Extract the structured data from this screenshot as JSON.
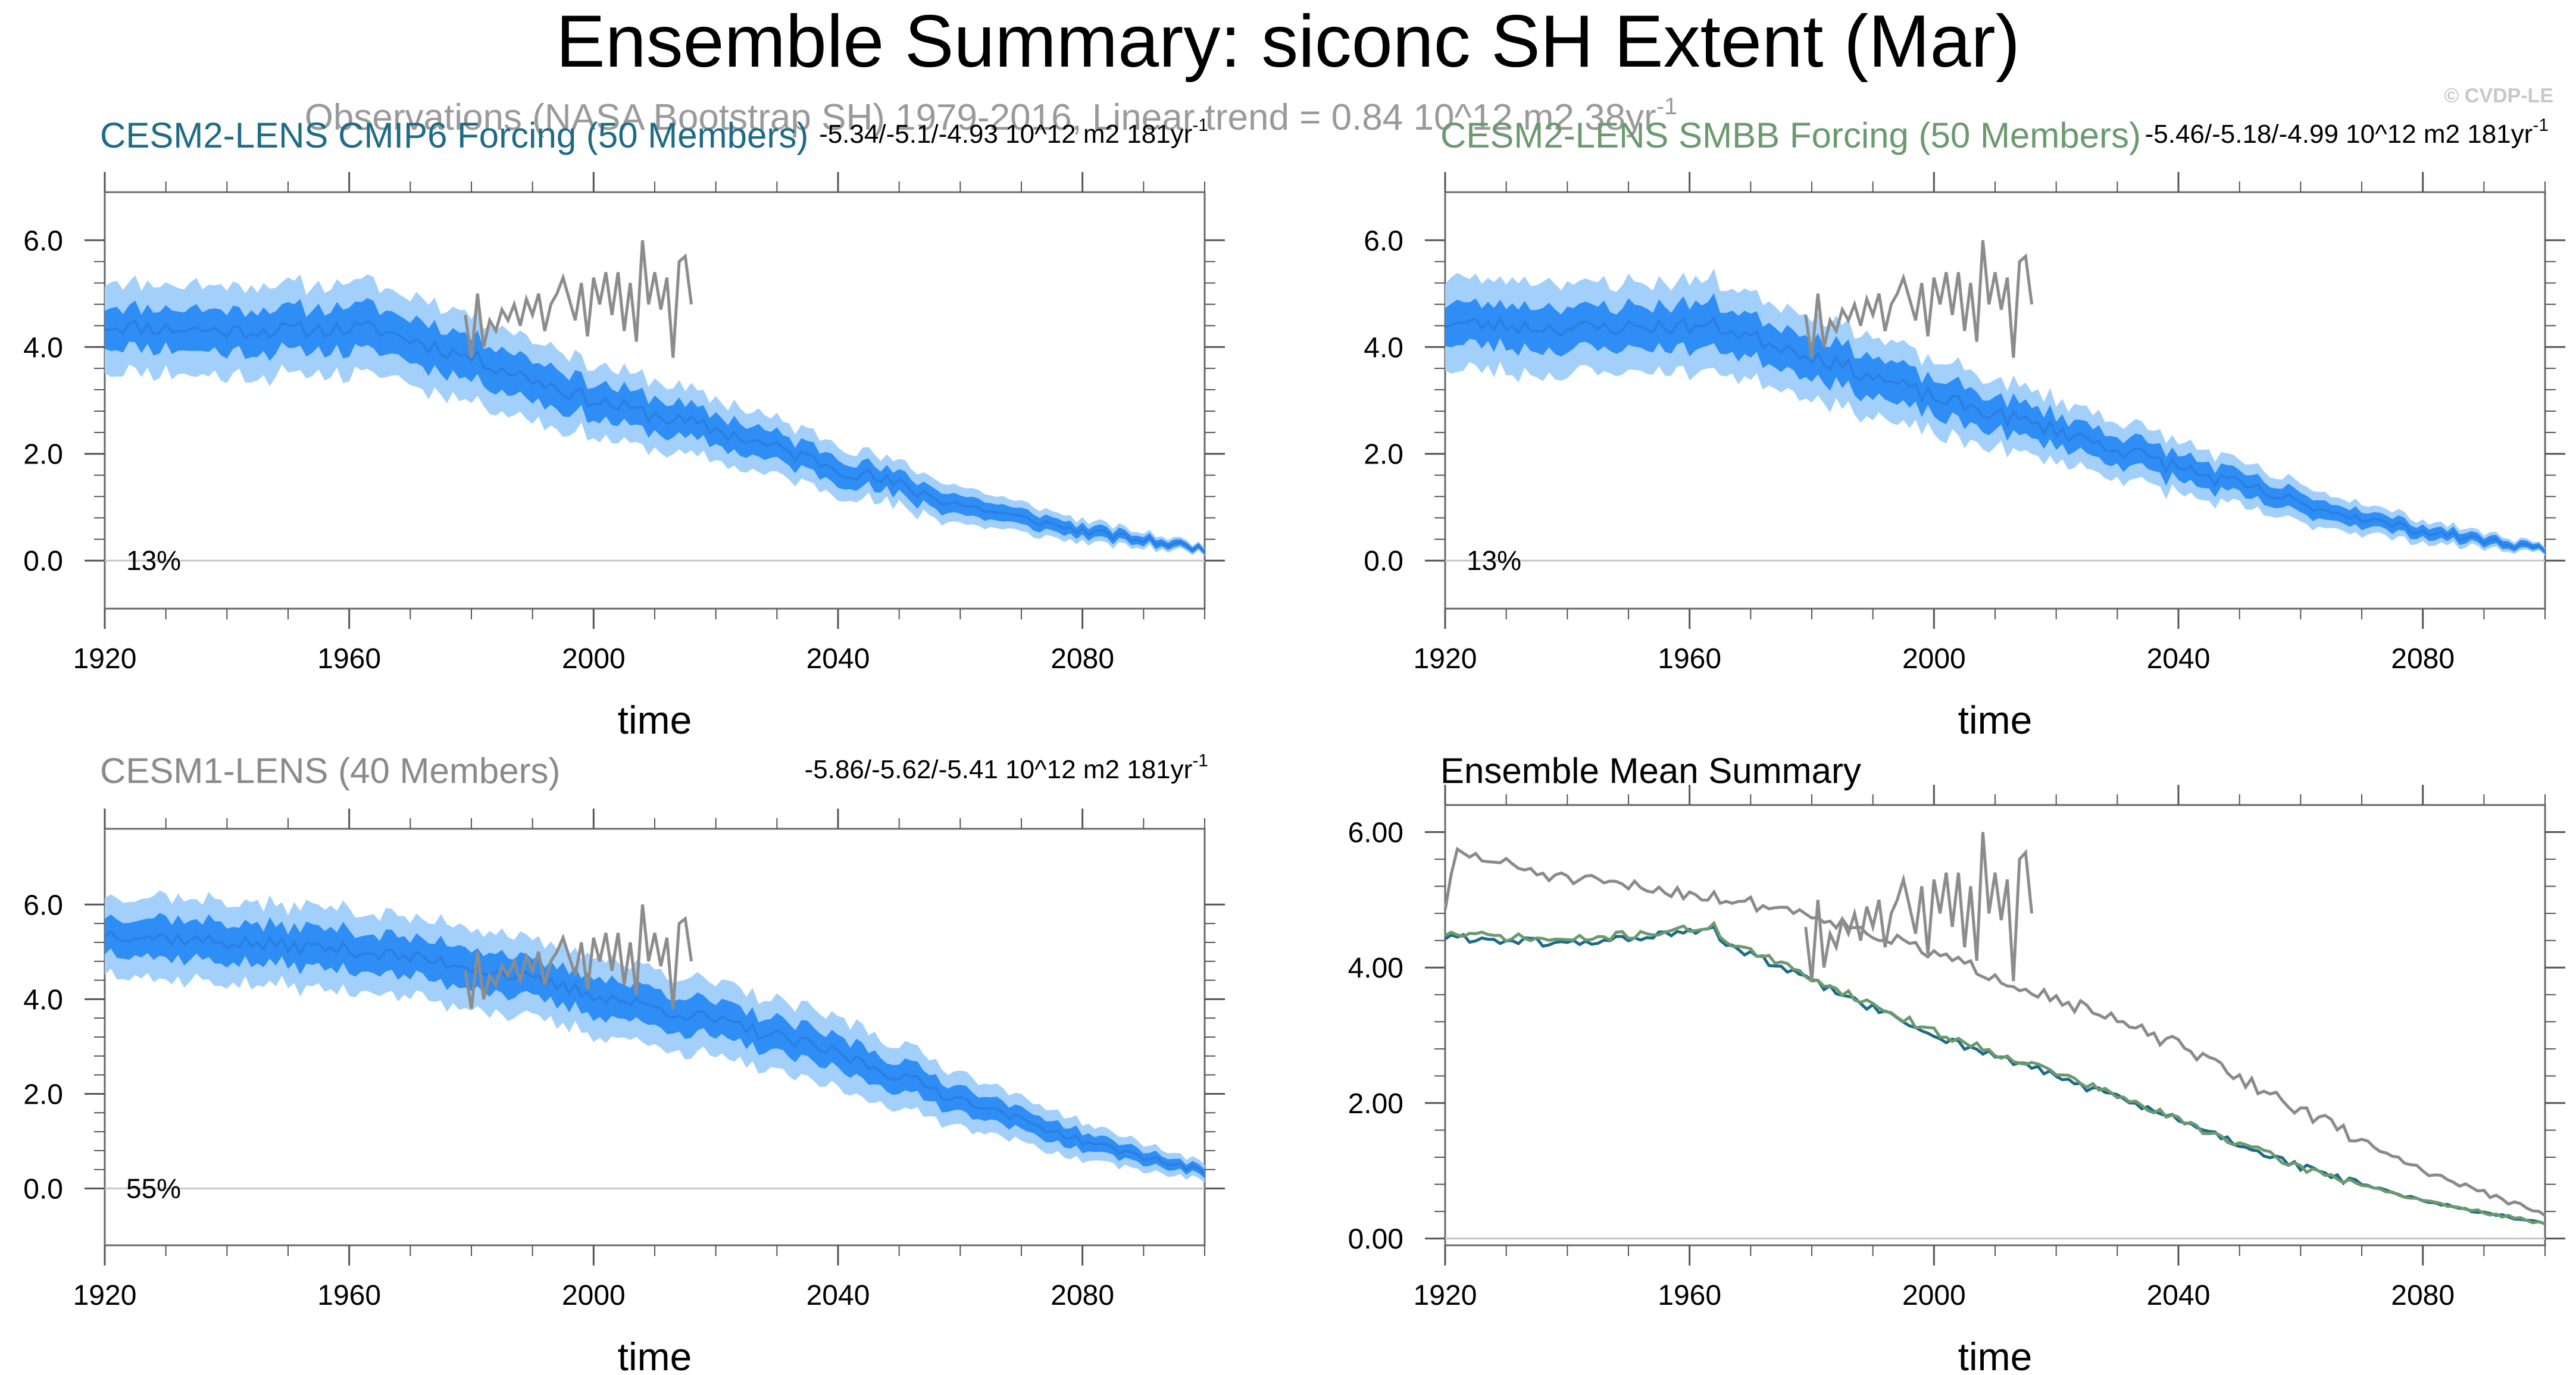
{
  "figure": {
    "title": "Ensemble Summary: siconc SH Extent (Mar)",
    "watermark": "© CVDP-LE",
    "observations_note": "Observations (NASA Bootstrap SH) 1979-2016, Linear trend = 0.84 10^12 m2 38yr",
    "observations_note_sup": "-1"
  },
  "colors": {
    "band_outer": "#a3d0fb",
    "band_inner": "#2f8ef5",
    "mean_line": "#2a7fe0",
    "obs": "#8c8c8c",
    "cesm2_cmip6": "#1d6b86",
    "cesm2_smbb": "#6a9a6e",
    "cesm1": "#8a8a8a",
    "axis": "#555555"
  },
  "chart_data": [
    {
      "type": "area",
      "id": "cesm2-cmip6",
      "title": "CESM2-LENS CMIP6 Forcing (50 Members)",
      "title_color": "#1d6b86",
      "trend_text": "-5.34/-5.1/-4.93 10^12 m2 181yr",
      "trend_sup": "-1",
      "percent_label": "13%",
      "xlabel": "time",
      "ylabel": "",
      "xlim": [
        1920,
        2100
      ],
      "ylim": [
        -0.9,
        6.9
      ],
      "xticks": [
        1920,
        1960,
        2000,
        2040,
        2080
      ],
      "yticks": [
        0.0,
        2.0,
        4.0,
        6.0
      ],
      "ytick_labels": [
        "0.0",
        "2.0",
        "4.0",
        "6.0"
      ],
      "mean_anchors": [
        [
          1920,
          4.4
        ],
        [
          1940,
          4.3
        ],
        [
          1964,
          4.35
        ],
        [
          1980,
          3.8
        ],
        [
          2000,
          3.0
        ],
        [
          2020,
          2.45
        ],
        [
          2040,
          1.75
        ],
        [
          2060,
          1.05
        ],
        [
          2080,
          0.55
        ],
        [
          2100,
          0.22
        ]
      ],
      "inner_halfwidth": [
        [
          1920,
          0.38
        ],
        [
          1965,
          0.42
        ],
        [
          2020,
          0.3
        ],
        [
          2060,
          0.18
        ],
        [
          2100,
          0.05
        ]
      ],
      "outer_halfwidth": [
        [
          1920,
          0.85
        ],
        [
          1965,
          0.85
        ],
        [
          2020,
          0.6
        ],
        [
          2060,
          0.35
        ],
        [
          2100,
          0.08
        ]
      ],
      "wiggle": 0.15,
      "seed": 11,
      "obs": {
        "name": "Observations",
        "x": [
          1979,
          1980,
          1981,
          1982,
          1983,
          1984,
          1985,
          1986,
          1987,
          1988,
          1989,
          1990,
          1991,
          1992,
          1993,
          1994,
          1995,
          1996,
          1997,
          1998,
          1999,
          2000,
          2001,
          2002,
          2003,
          2004,
          2005,
          2006,
          2007,
          2008,
          2009,
          2010,
          2011,
          2012,
          2013,
          2014,
          2015,
          2016
        ],
        "y": [
          4.6,
          3.8,
          5.0,
          4.0,
          4.5,
          4.3,
          4.7,
          4.5,
          4.8,
          4.4,
          4.9,
          4.6,
          5.0,
          4.3,
          4.8,
          5.0,
          5.3,
          4.9,
          4.5,
          5.2,
          4.2,
          5.3,
          4.8,
          5.4,
          4.6,
          5.4,
          4.3,
          5.2,
          4.1,
          6.0,
          4.8,
          5.4,
          4.7,
          5.3,
          3.8,
          5.6,
          5.7,
          4.8
        ]
      },
      "multi_line": false
    },
    {
      "type": "area",
      "id": "cesm2-smbb",
      "title": "CESM2-LENS SMBB Forcing (50 Members)",
      "title_color": "#6a9a6e",
      "trend_text": "-5.46/-5.18/-4.99 10^12 m2 181yr",
      "trend_sup": "-1",
      "percent_label": "13%",
      "xlabel": "time",
      "ylabel": "",
      "xlim": [
        1920,
        2100
      ],
      "ylim": [
        -0.9,
        6.9
      ],
      "xticks": [
        1920,
        1960,
        2000,
        2040,
        2080
      ],
      "yticks": [
        0.0,
        2.0,
        4.0,
        6.0
      ],
      "ytick_labels": [
        "0.0",
        "2.0",
        "4.0",
        "6.0"
      ],
      "mean_anchors": [
        [
          1920,
          4.45
        ],
        [
          1940,
          4.35
        ],
        [
          1964,
          4.4
        ],
        [
          1980,
          3.85
        ],
        [
          2000,
          3.05
        ],
        [
          2020,
          2.45
        ],
        [
          2040,
          1.75
        ],
        [
          2060,
          1.05
        ],
        [
          2080,
          0.55
        ],
        [
          2100,
          0.22
        ]
      ],
      "inner_halfwidth": [
        [
          1920,
          0.38
        ],
        [
          1965,
          0.42
        ],
        [
          2020,
          0.3
        ],
        [
          2060,
          0.18
        ],
        [
          2100,
          0.05
        ]
      ],
      "outer_halfwidth": [
        [
          1920,
          0.85
        ],
        [
          1965,
          0.85
        ],
        [
          2020,
          0.6
        ],
        [
          2060,
          0.35
        ],
        [
          2100,
          0.08
        ]
      ],
      "wiggle": 0.15,
      "seed": 23,
      "obs": {
        "name": "Observations",
        "x": [
          1979,
          1980,
          1981,
          1982,
          1983,
          1984,
          1985,
          1986,
          1987,
          1988,
          1989,
          1990,
          1991,
          1992,
          1993,
          1994,
          1995,
          1996,
          1997,
          1998,
          1999,
          2000,
          2001,
          2002,
          2003,
          2004,
          2005,
          2006,
          2007,
          2008,
          2009,
          2010,
          2011,
          2012,
          2013,
          2014,
          2015,
          2016
        ],
        "y": [
          4.6,
          3.8,
          5.0,
          4.0,
          4.5,
          4.3,
          4.7,
          4.5,
          4.8,
          4.4,
          4.9,
          4.6,
          5.0,
          4.3,
          4.8,
          5.0,
          5.3,
          4.9,
          4.5,
          5.2,
          4.2,
          5.3,
          4.8,
          5.4,
          4.6,
          5.4,
          4.3,
          5.2,
          4.1,
          6.0,
          4.8,
          5.4,
          4.7,
          5.3,
          3.8,
          5.6,
          5.7,
          4.8
        ]
      },
      "multi_line": false
    },
    {
      "type": "area",
      "id": "cesm1",
      "title": "CESM1-LENS (40 Members)",
      "title_color": "#8a8a8a",
      "trend_text": "-5.86/-5.62/-5.41 10^12 m2 181yr",
      "trend_sup": "-1",
      "percent_label": "55%",
      "xlabel": "time",
      "ylabel": "",
      "xlim": [
        1920,
        2100
      ],
      "ylim": [
        -1.2,
        7.6
      ],
      "xticks": [
        1920,
        1960,
        2000,
        2040,
        2080
      ],
      "yticks": [
        0.0,
        2.0,
        4.0,
        6.0
      ],
      "ytick_labels": [
        "0.0",
        "2.0",
        "4.0",
        "6.0"
      ],
      "mean_anchors": [
        [
          1920,
          5.4
        ],
        [
          1940,
          5.2
        ],
        [
          1960,
          5.05
        ],
        [
          1980,
          4.7
        ],
        [
          2000,
          4.1
        ],
        [
          2020,
          3.55
        ],
        [
          2040,
          2.85
        ],
        [
          2060,
          1.9
        ],
        [
          2080,
          1.0
        ],
        [
          2100,
          0.35
        ]
      ],
      "inner_halfwidth": [
        [
          1920,
          0.4
        ],
        [
          1980,
          0.42
        ],
        [
          2040,
          0.35
        ],
        [
          2100,
          0.1
        ]
      ],
      "outer_halfwidth": [
        [
          1920,
          0.85
        ],
        [
          1980,
          0.85
        ],
        [
          2040,
          0.75
        ],
        [
          2100,
          0.2
        ]
      ],
      "wiggle": 0.15,
      "seed": 37,
      "obs": {
        "name": "Observations",
        "x": [
          1979,
          1980,
          1981,
          1982,
          1983,
          1984,
          1985,
          1986,
          1987,
          1988,
          1989,
          1990,
          1991,
          1992,
          1993,
          1994,
          1995,
          1996,
          1997,
          1998,
          1999,
          2000,
          2001,
          2002,
          2003,
          2004,
          2005,
          2006,
          2007,
          2008,
          2009,
          2010,
          2011,
          2012,
          2013,
          2014,
          2015,
          2016
        ],
        "y": [
          4.6,
          3.8,
          5.0,
          4.0,
          4.5,
          4.3,
          4.7,
          4.5,
          4.8,
          4.4,
          4.9,
          4.6,
          5.0,
          4.3,
          4.8,
          5.0,
          5.3,
          4.9,
          4.5,
          5.2,
          4.2,
          5.3,
          4.8,
          5.4,
          4.6,
          5.4,
          4.3,
          5.2,
          4.1,
          6.0,
          4.8,
          5.4,
          4.7,
          5.3,
          3.8,
          5.6,
          5.7,
          4.8
        ]
      },
      "multi_line": false
    },
    {
      "type": "line",
      "id": "ensemble-mean",
      "title": "Ensemble Mean Summary",
      "title_color": "#000000",
      "trend_text": "",
      "trend_sup": "",
      "percent_label": "",
      "xlabel": "time",
      "ylabel": "",
      "xlim": [
        1920,
        2100
      ],
      "ylim": [
        -0.1,
        6.4
      ],
      "xticks": [
        1920,
        1960,
        2000,
        2040,
        2080
      ],
      "yticks": [
        0.0,
        2.0,
        4.0,
        6.0
      ],
      "ytick_labels": [
        "0.00",
        "2.00",
        "4.00",
        "6.00"
      ],
      "series": [
        {
          "name": "CESM1-LENS",
          "color": "#8a8a8a",
          "anchors": [
            [
              1920,
              4.9
            ],
            [
              1922,
              5.7
            ],
            [
              1940,
              5.3
            ],
            [
              1960,
              5.1
            ],
            [
              1980,
              4.8
            ],
            [
              2000,
              4.2
            ],
            [
              2020,
              3.55
            ],
            [
              2040,
              2.85
            ],
            [
              2060,
              1.9
            ],
            [
              2080,
              1.0
            ],
            [
              2100,
              0.35
            ]
          ],
          "wiggle": 0.1,
          "seed": 51
        },
        {
          "name": "CESM2-LENS CMIP6 Forcing",
          "color": "#1d6b86",
          "anchors": [
            [
              1920,
              4.45
            ],
            [
              1940,
              4.35
            ],
            [
              1964,
              4.55
            ],
            [
              1966,
              4.35
            ],
            [
              1980,
              3.8
            ],
            [
              2000,
              3.0
            ],
            [
              2020,
              2.4
            ],
            [
              2040,
              1.75
            ],
            [
              2060,
              1.05
            ],
            [
              2080,
              0.55
            ],
            [
              2100,
              0.22
            ]
          ],
          "wiggle": 0.06,
          "seed": 61
        },
        {
          "name": "CESM2-LENS SMBB Forcing",
          "color": "#6a9a6e",
          "anchors": [
            [
              1920,
              4.5
            ],
            [
              1940,
              4.4
            ],
            [
              1964,
              4.6
            ],
            [
              1966,
              4.4
            ],
            [
              1980,
              3.85
            ],
            [
              2000,
              3.05
            ],
            [
              2020,
              2.45
            ],
            [
              2040,
              1.75
            ],
            [
              2060,
              1.05
            ],
            [
              2080,
              0.55
            ],
            [
              2100,
              0.22
            ]
          ],
          "wiggle": 0.06,
          "seed": 71
        }
      ],
      "obs": {
        "name": "Observations",
        "x": [
          1979,
          1980,
          1981,
          1982,
          1983,
          1984,
          1985,
          1986,
          1987,
          1988,
          1989,
          1990,
          1991,
          1992,
          1993,
          1994,
          1995,
          1996,
          1997,
          1998,
          1999,
          2000,
          2001,
          2002,
          2003,
          2004,
          2005,
          2006,
          2007,
          2008,
          2009,
          2010,
          2011,
          2012,
          2013,
          2014,
          2015,
          2016
        ],
        "y": [
          4.6,
          3.8,
          5.0,
          4.0,
          4.5,
          4.3,
          4.7,
          4.5,
          4.8,
          4.4,
          4.9,
          4.6,
          5.0,
          4.3,
          4.8,
          5.0,
          5.3,
          4.9,
          4.5,
          5.2,
          4.2,
          5.3,
          4.8,
          5.4,
          4.6,
          5.4,
          4.3,
          5.2,
          4.1,
          6.0,
          4.8,
          5.4,
          4.7,
          5.3,
          3.8,
          5.6,
          5.7,
          4.8
        ]
      },
      "multi_line": true
    }
  ]
}
